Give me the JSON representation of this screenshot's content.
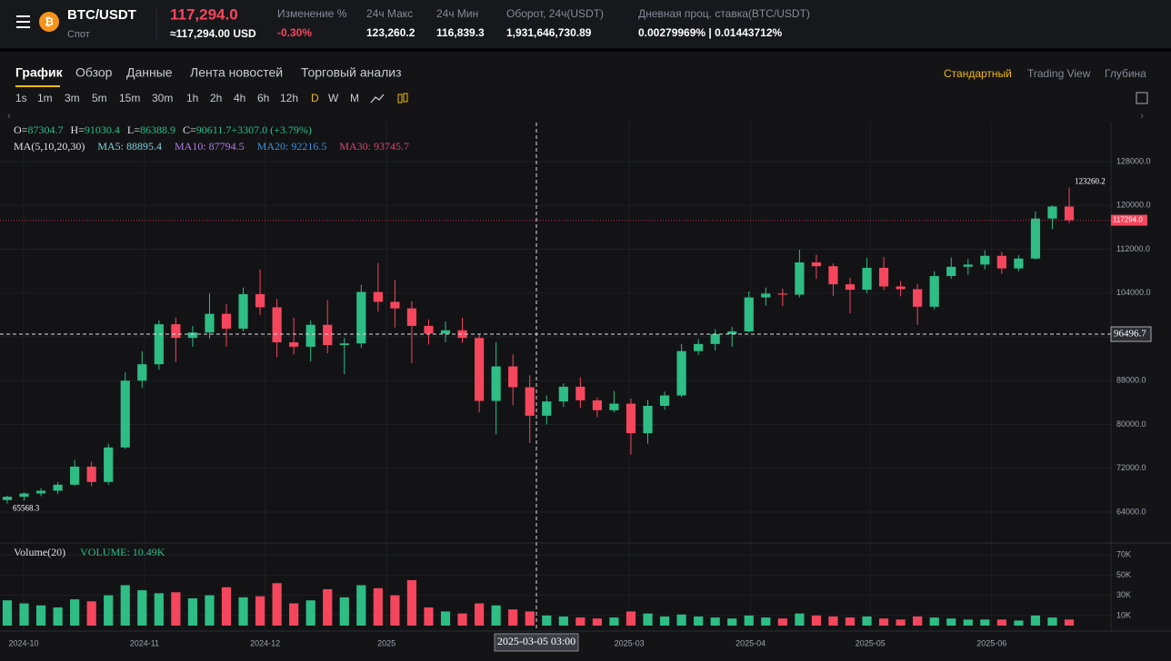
{
  "header": {
    "symbol": "BTC/USDT",
    "market": "Спот",
    "last_price": "117,294.0",
    "last_price_usd": "≈117,294.00 USD",
    "stats": [
      {
        "label": "Изменение %",
        "value": "-0.30%"
      },
      {
        "label": "24ч Макс",
        "value": "123,260.2"
      },
      {
        "label": "24ч Мин",
        "value": "116,839.3"
      },
      {
        "label": "Оборот, 24ч(USDT)",
        "value": "1,931,646,730.89"
      },
      {
        "label": "Дневная проц. ставка(BTC/USDT)",
        "value": "0.00279969% | 0.01443712%"
      }
    ]
  },
  "tabs": [
    "График",
    "Обзор",
    "Данные",
    "Лента новостей",
    "Торговый анализ"
  ],
  "view_modes": [
    "Стандартный",
    "Trading View",
    "Глубина"
  ],
  "timeframes": [
    "1s",
    "1m",
    "3m",
    "5m",
    "15m",
    "30m",
    "1h",
    "2h",
    "4h",
    "6h",
    "12h",
    "D",
    "W",
    "M"
  ],
  "chart_data": {
    "type": "candlestick",
    "legend_ohlc": [
      {
        "label": "O=",
        "value": "87304.7"
      },
      {
        "label": "H=",
        "value": "91030.4"
      },
      {
        "label": "L=",
        "value": "86388.9"
      },
      {
        "label": "C=",
        "value": "90611.7"
      },
      {
        "label": "",
        "value": "+3307.0 (+3.79%)"
      }
    ],
    "ma_legend": {
      "title": "MA(5,10,20,30)",
      "items": [
        {
          "text": "MA5: 88895.4",
          "color": "#7fd3d9"
        },
        {
          "text": "MA10: 87794.5",
          "color": "#b07be0"
        },
        {
          "text": "MA20: 92216.5",
          "color": "#3d8fd8"
        },
        {
          "text": "MA30: 93745.7",
          "color": "#d9437a"
        }
      ]
    },
    "volume_title": "Volume(20)",
    "volume_value": "VOLUME: 10.49K",
    "up_color": "#2ebd85",
    "down_color": "#f6465d",
    "open": [
      66200,
      66800,
      67400,
      67900,
      69000,
      72300,
      69500,
      75800,
      88000,
      91000,
      98300,
      95800,
      96800,
      100200,
      97500,
      103800,
      101400,
      95000,
      94200,
      98200,
      94500,
      94800,
      104200,
      102400,
      101200,
      98000,
      96600,
      97200,
      95800,
      84300,
      90600,
      86800,
      81600,
      84200,
      86900,
      84400,
      82600,
      83800,
      78400,
      83400,
      85300,
      93400,
      94700,
      96500,
      97000,
      103200,
      103900,
      103700,
      109600,
      108900,
      105600,
      104600,
      108600,
      105200,
      104700,
      101500,
      107100,
      108800,
      109200,
      110800,
      108500,
      110300,
      117600,
      119800
    ],
    "high": [
      67000,
      67600,
      68400,
      69500,
      73500,
      73200,
      76500,
      89500,
      93400,
      99000,
      99500,
      98000,
      103900,
      102000,
      105000,
      108300,
      102900,
      99500,
      99000,
      102700,
      95800,
      105500,
      109500,
      106400,
      102500,
      99200,
      98800,
      99500,
      96500,
      95000,
      92800,
      89000,
      85300,
      87500,
      88600,
      84900,
      86100,
      84700,
      84500,
      86000,
      94700,
      95600,
      97400,
      97800,
      104300,
      105000,
      104800,
      111900,
      111000,
      109400,
      106800,
      110400,
      110600,
      106200,
      105600,
      108000,
      110500,
      110200,
      111800,
      111500,
      110900,
      118900,
      120000,
      123260.2
    ],
    "low": [
      65568.3,
      66100,
      66900,
      67300,
      68800,
      68700,
      69000,
      75500,
      86700,
      90000,
      91400,
      94200,
      95700,
      94200,
      97000,
      100000,
      92300,
      92800,
      91500,
      93000,
      89200,
      94000,
      100600,
      97700,
      91200,
      94600,
      95000,
      94900,
      82200,
      78200,
      83500,
      76600,
      80000,
      83200,
      83000,
      81300,
      82200,
      74500,
      76500,
      82700,
      85000,
      92700,
      93500,
      94200,
      96800,
      101700,
      101600,
      103200,
      106600,
      103500,
      100300,
      104000,
      104500,
      103400,
      98200,
      101000,
      106600,
      107300,
      108300,
      107500,
      108000,
      110100,
      115700,
      116800
    ],
    "close": [
      66800,
      67400,
      67900,
      69000,
      72300,
      69500,
      75800,
      88000,
      91000,
      98300,
      95800,
      96800,
      100200,
      97500,
      103800,
      101400,
      95000,
      94200,
      98200,
      94500,
      94800,
      104200,
      102400,
      101200,
      98000,
      96600,
      97200,
      95800,
      84300,
      90600,
      86800,
      81600,
      84200,
      86900,
      84400,
      82600,
      83800,
      78400,
      83400,
      85300,
      93400,
      94700,
      96500,
      97000,
      103200,
      103900,
      103700,
      109600,
      108900,
      105600,
      104600,
      108600,
      105200,
      104700,
      101500,
      107100,
      108800,
      109200,
      110800,
      108500,
      110300,
      117600,
      119800,
      117294
    ],
    "volume": [
      25000,
      22000,
      20000,
      18000,
      26000,
      24000,
      30000,
      40000,
      35000,
      32000,
      33000,
      27000,
      30000,
      38000,
      28000,
      29000,
      42000,
      22000,
      25000,
      36000,
      28000,
      40000,
      37000,
      30000,
      45000,
      18000,
      14000,
      12000,
      22000,
      20000,
      16000,
      14000,
      10000,
      9000,
      8000,
      7000,
      8000,
      14000,
      12000,
      9000,
      11000,
      9000,
      8000,
      7000,
      10000,
      8000,
      7000,
      12000,
      10000,
      9000,
      8000,
      9000,
      7000,
      6000,
      9000,
      8000,
      7000,
      6000,
      6000,
      6000,
      5000,
      10000,
      8000,
      6000
    ],
    "xlim": [
      -0.43,
      65.48
    ],
    "xticks": [
      {
        "value": 0.97,
        "label": "2024-10"
      },
      {
        "value": 8.14,
        "label": "2024-11"
      },
      {
        "value": 15.3,
        "label": "2024-12"
      },
      {
        "value": 22.5,
        "label": "2025"
      },
      {
        "value": 36.9,
        "label": "2025-03"
      },
      {
        "value": 44.1,
        "label": "2025-04"
      },
      {
        "value": 51.2,
        "label": "2025-05"
      },
      {
        "value": 58.4,
        "label": "2025-06"
      }
    ],
    "ylim": [
      58360,
      135130
    ],
    "yticks": [
      {
        "value": 64000,
        "label": "64000.0"
      },
      {
        "value": 72000,
        "label": "72000.0"
      },
      {
        "value": 80000,
        "label": "80000.0"
      },
      {
        "value": 88000,
        "label": "88000.0"
      },
      {
        "value": 96000,
        "label": "96000.0"
      },
      {
        "value": 104000,
        "label": "104000.0"
      },
      {
        "value": 112000,
        "label": "112000.0"
      },
      {
        "value": 120000,
        "label": "120000.0"
      },
      {
        "value": 128000,
        "label": "128000.0"
      }
    ],
    "vlim": [
      0,
      80000
    ],
    "vticks": [
      {
        "value": 10000,
        "label": "10K"
      },
      {
        "value": 30000,
        "label": "30K"
      },
      {
        "value": 50000,
        "label": "50K"
      },
      {
        "value": 70000,
        "label": "70K"
      }
    ],
    "last": {
      "value": 117294,
      "label": "117294.0"
    },
    "crosshair_price": 96496.7,
    "crosshair_time": "2025-03-05 03:00"
  }
}
